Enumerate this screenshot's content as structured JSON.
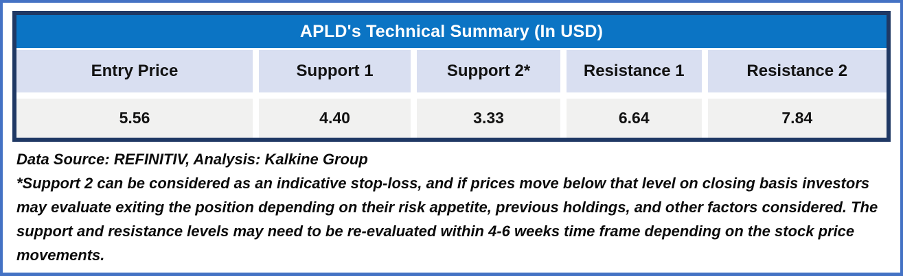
{
  "chart_data": {
    "type": "table",
    "title": "APLD's Technical Summary (In USD)",
    "categories": [
      "Entry Price",
      "Support 1",
      "Support 2*",
      "Resistance 1",
      "Resistance 2"
    ],
    "values": [
      5.56,
      4.4,
      3.33,
      6.64,
      7.84
    ]
  },
  "table": {
    "title": "APLD's Technical Summary (In USD)",
    "columns": [
      {
        "header": "Entry Price",
        "value": "5.56"
      },
      {
        "header": "Support 1",
        "value": "4.40"
      },
      {
        "header": "Support 2*",
        "value": "3.33"
      },
      {
        "header": "Resistance 1",
        "value": "6.64"
      },
      {
        "header": "Resistance 2",
        "value": "7.84"
      }
    ]
  },
  "notes": {
    "source_line": "Data Source: REFINITIV, Analysis: Kalkine Group",
    "disclaimer": "*Support 2 can be considered as an indicative stop-loss, and if prices move below that level on closing basis investors may evaluate exiting the position depending on their risk appetite, previous holdings, and other factors considered. The support and resistance levels may need to be re-evaluated within 4-6 weeks time frame depending on the stock price movements."
  },
  "colors": {
    "title_bar": "#0B74C4",
    "header_row": "#D9DFF1",
    "value_row": "#F1F1F0",
    "table_border": "#1F3864",
    "outer_border": "#4472C4",
    "title_text": "#FFFFFF",
    "body_text": "#121212"
  }
}
